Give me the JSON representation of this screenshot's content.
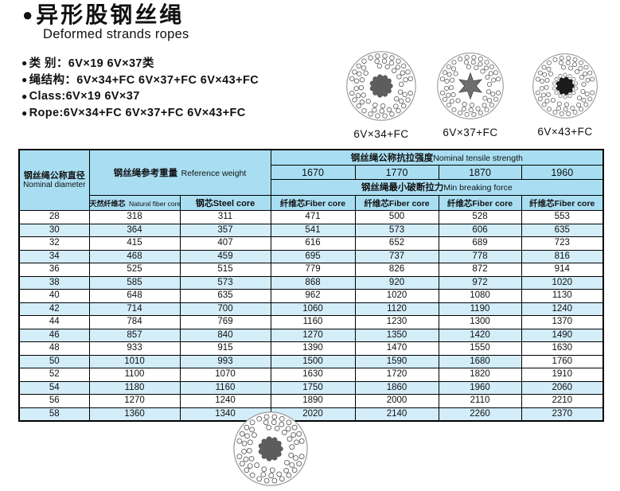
{
  "header": {
    "bullet": "●",
    "title_zh": "异形股钢丝绳",
    "title_en": "Deformed strands ropes"
  },
  "specs": [
    "类 别：6V×19  6V×37类",
    "绳结构：6V×34+FC  6V×37+FC 6V×43+FC",
    "Class:6V×19  6V×37",
    "Rope:6V×34+FC  6V×37+FC 6V×43+FC"
  ],
  "diagrams": [
    {
      "label": "6V×34+FC",
      "core": "gear-gray"
    },
    {
      "label": "6V×37+FC",
      "core": "star-gray"
    },
    {
      "label": "6V×43+FC",
      "core": "gear-black"
    }
  ],
  "table": {
    "diameter_zh": "钢丝绳公称直径",
    "diameter_en": "Nominal diameter",
    "ref_weight_zh": "钢丝绳参考重量",
    "ref_weight_en": "Reference weight",
    "tensile_zh": "钢丝绳公称抗拉强度",
    "tensile_en": "Nominal tensile strength",
    "grades": [
      "1670",
      "1770",
      "1870",
      "1960"
    ],
    "breaking_zh": "钢丝绳最小破断拉力",
    "breaking_en": "Min breaking force",
    "natural_zh": "天然纤维芯",
    "natural_en": "Natural fiber core",
    "steel_core": "钢芯Steel core",
    "fiber_core": "纤维芯Fiber core",
    "rows": [
      [
        "28",
        "318",
        "311",
        "471",
        "500",
        "528",
        "553"
      ],
      [
        "30",
        "364",
        "357",
        "541",
        "573",
        "606",
        "635"
      ],
      [
        "32",
        "415",
        "407",
        "616",
        "652",
        "689",
        "723"
      ],
      [
        "34",
        "468",
        "459",
        "695",
        "737",
        "778",
        "816"
      ],
      [
        "36",
        "525",
        "515",
        "779",
        "826",
        "872",
        "914"
      ],
      [
        "38",
        "585",
        "573",
        "868",
        "920",
        "972",
        "1020"
      ],
      [
        "40",
        "648",
        "635",
        "962",
        "1020",
        "1080",
        "1130"
      ],
      [
        "42",
        "714",
        "700",
        "1060",
        "1120",
        "1190",
        "1240"
      ],
      [
        "44",
        "784",
        "769",
        "1160",
        "1230",
        "1300",
        "1370"
      ],
      [
        "46",
        "857",
        "840",
        "1270",
        "1350",
        "1420",
        "1490"
      ],
      [
        "48",
        "933",
        "915",
        "1390",
        "1470",
        "1550",
        "1630"
      ],
      [
        "50",
        "1010",
        "993",
        "1500",
        "1590",
        "1680",
        "1760"
      ],
      [
        "52",
        "1100",
        "1070",
        "1630",
        "1720",
        "1820",
        "1910"
      ],
      [
        "54",
        "1180",
        "1160",
        "1750",
        "1860",
        "1960",
        "2060"
      ],
      [
        "56",
        "1270",
        "1240",
        "1890",
        "2000",
        "2110",
        "2210"
      ],
      [
        "58",
        "1360",
        "1340",
        "2020",
        "2140",
        "2260",
        "2370"
      ]
    ]
  },
  "colors": {
    "header_bg": "#a9def2",
    "stripe_bg": "#d3edf9",
    "border": "#000000",
    "text": "#111111"
  }
}
